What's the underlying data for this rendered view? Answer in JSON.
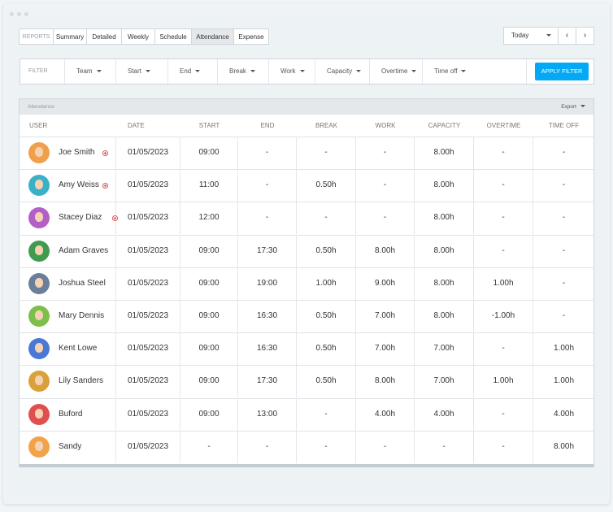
{
  "tabs": [
    "REPORTS",
    "Summary",
    "Detailed",
    "Weekly",
    "Schedule",
    "Attendance",
    "Expense"
  ],
  "date_select": "Today",
  "filter": {
    "label": "FILTER",
    "items": [
      "Team",
      "Start",
      "End",
      "Break",
      "Work",
      "Capacity",
      "Overtime",
      "Time off"
    ],
    "button": "APPLY FILTER"
  },
  "table": {
    "title": "Attendance",
    "export": "Export",
    "columns": [
      "USER",
      "DATE",
      "START",
      "END",
      "BREAK",
      "WORK",
      "CAPACITY",
      "OVERTIME",
      "TIME OFF"
    ],
    "rows": [
      {
        "cells": [
          "Joe Smith",
          "01/05/2023",
          "09:00",
          "-",
          "-",
          "-",
          "8.00h",
          "-",
          "-"
        ],
        "live": true
      },
      {
        "cells": [
          "Amy Weiss",
          "01/05/2023",
          "11:00",
          "-",
          "0.50h",
          "-",
          "8.00h",
          "-",
          "-"
        ],
        "live": true
      },
      {
        "cells": [
          "Stacey Diaz",
          "01/05/2023",
          "12:00",
          "-",
          "-",
          "-",
          "8.00h",
          "-",
          "-"
        ],
        "live": true
      },
      {
        "cells": [
          "Adam Graves",
          "01/05/2023",
          "09:00",
          "17:30",
          "0.50h",
          "8.00h",
          "8.00h",
          "-",
          "-"
        ]
      },
      {
        "cells": [
          "Joshua Steel",
          "01/05/2023",
          "09:00",
          "19:00",
          "1.00h",
          "9.00h",
          "8.00h",
          "1.00h",
          "-"
        ]
      },
      {
        "cells": [
          "Mary Dennis",
          "01/05/2023",
          "09:00",
          "16:30",
          "0.50h",
          "7.00h",
          "8.00h",
          "-1.00h",
          "-"
        ]
      },
      {
        "cells": [
          "Kent Lowe",
          "01/05/2023",
          "09:00",
          "16:30",
          "0.50h",
          "7.00h",
          "7.00h",
          "-",
          "1.00h"
        ]
      },
      {
        "cells": [
          "Lily Sanders",
          "01/05/2023",
          "09:00",
          "17:30",
          "0.50h",
          "8.00h",
          "7.00h",
          "1.00h",
          "1.00h"
        ]
      },
      {
        "cells": [
          "Buford",
          "01/05/2023",
          "09:00",
          "13:00",
          "-",
          "4.00h",
          "4.00h",
          "-",
          "4.00h"
        ]
      },
      {
        "cells": [
          "Sandy",
          "01/05/2023",
          "-",
          "-",
          "-",
          "-",
          "-",
          "-",
          "8.00h"
        ]
      }
    ]
  }
}
